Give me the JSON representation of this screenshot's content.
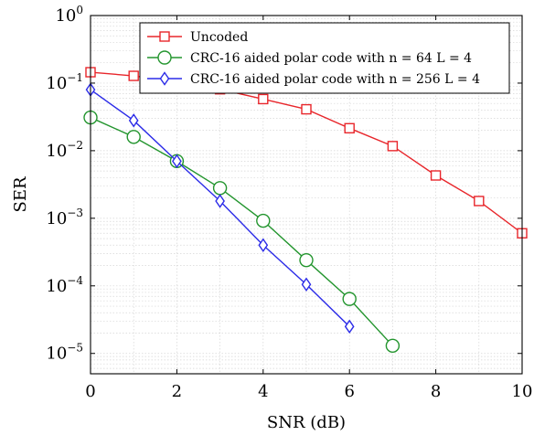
{
  "chart_data": {
    "type": "line",
    "xlabel": "SNR (dB)",
    "ylabel": "SER",
    "xlim": [
      0,
      10
    ],
    "ylim": [
      5e-06,
      1
    ],
    "yscale": "log",
    "grid": true,
    "legend_position": "top-right",
    "x_ticks": [
      {
        "value": 0,
        "label": "0"
      },
      {
        "value": 2,
        "label": "2"
      },
      {
        "value": 4,
        "label": "4"
      },
      {
        "value": 6,
        "label": "6"
      },
      {
        "value": 8,
        "label": "8"
      },
      {
        "value": 10,
        "label": "10"
      }
    ],
    "y_ticks": [
      {
        "value": 1,
        "base": "10",
        "exp": "0"
      },
      {
        "value": 0.1,
        "base": "10",
        "exp": "−1"
      },
      {
        "value": 0.01,
        "base": "10",
        "exp": "−2"
      },
      {
        "value": 0.001,
        "base": "10",
        "exp": "−3"
      },
      {
        "value": 0.0001,
        "base": "10",
        "exp": "−4"
      },
      {
        "value": 1e-05,
        "base": "10",
        "exp": "−5"
      }
    ],
    "series": [
      {
        "name": "Uncoded",
        "color": "#e8262b",
        "marker": "square",
        "x": [
          0,
          1,
          2,
          3,
          4,
          5,
          6,
          7,
          8,
          9,
          10
        ],
        "y": [
          0.145,
          0.128,
          0.105,
          0.081,
          0.058,
          0.041,
          0.0215,
          0.0117,
          0.0043,
          0.0018,
          0.0006
        ]
      },
      {
        "name": "CRC-16 aided polar code with n = 64 L = 4",
        "color": "#23952e",
        "marker": "circle",
        "x": [
          0,
          1,
          2,
          3,
          4,
          5,
          6,
          7
        ],
        "y": [
          0.031,
          0.016,
          0.007,
          0.0028,
          0.00092,
          0.00024,
          6.4e-05,
          1.3e-05
        ]
      },
      {
        "name": "CRC-16 aided polar code with n = 256 L = 4",
        "color": "#2b2be8",
        "marker": "diamond",
        "x": [
          0,
          1,
          2,
          3,
          4,
          5,
          6
        ],
        "y": [
          0.08,
          0.028,
          0.007,
          0.0018,
          0.0004,
          0.000105,
          2.5e-05
        ]
      }
    ]
  }
}
